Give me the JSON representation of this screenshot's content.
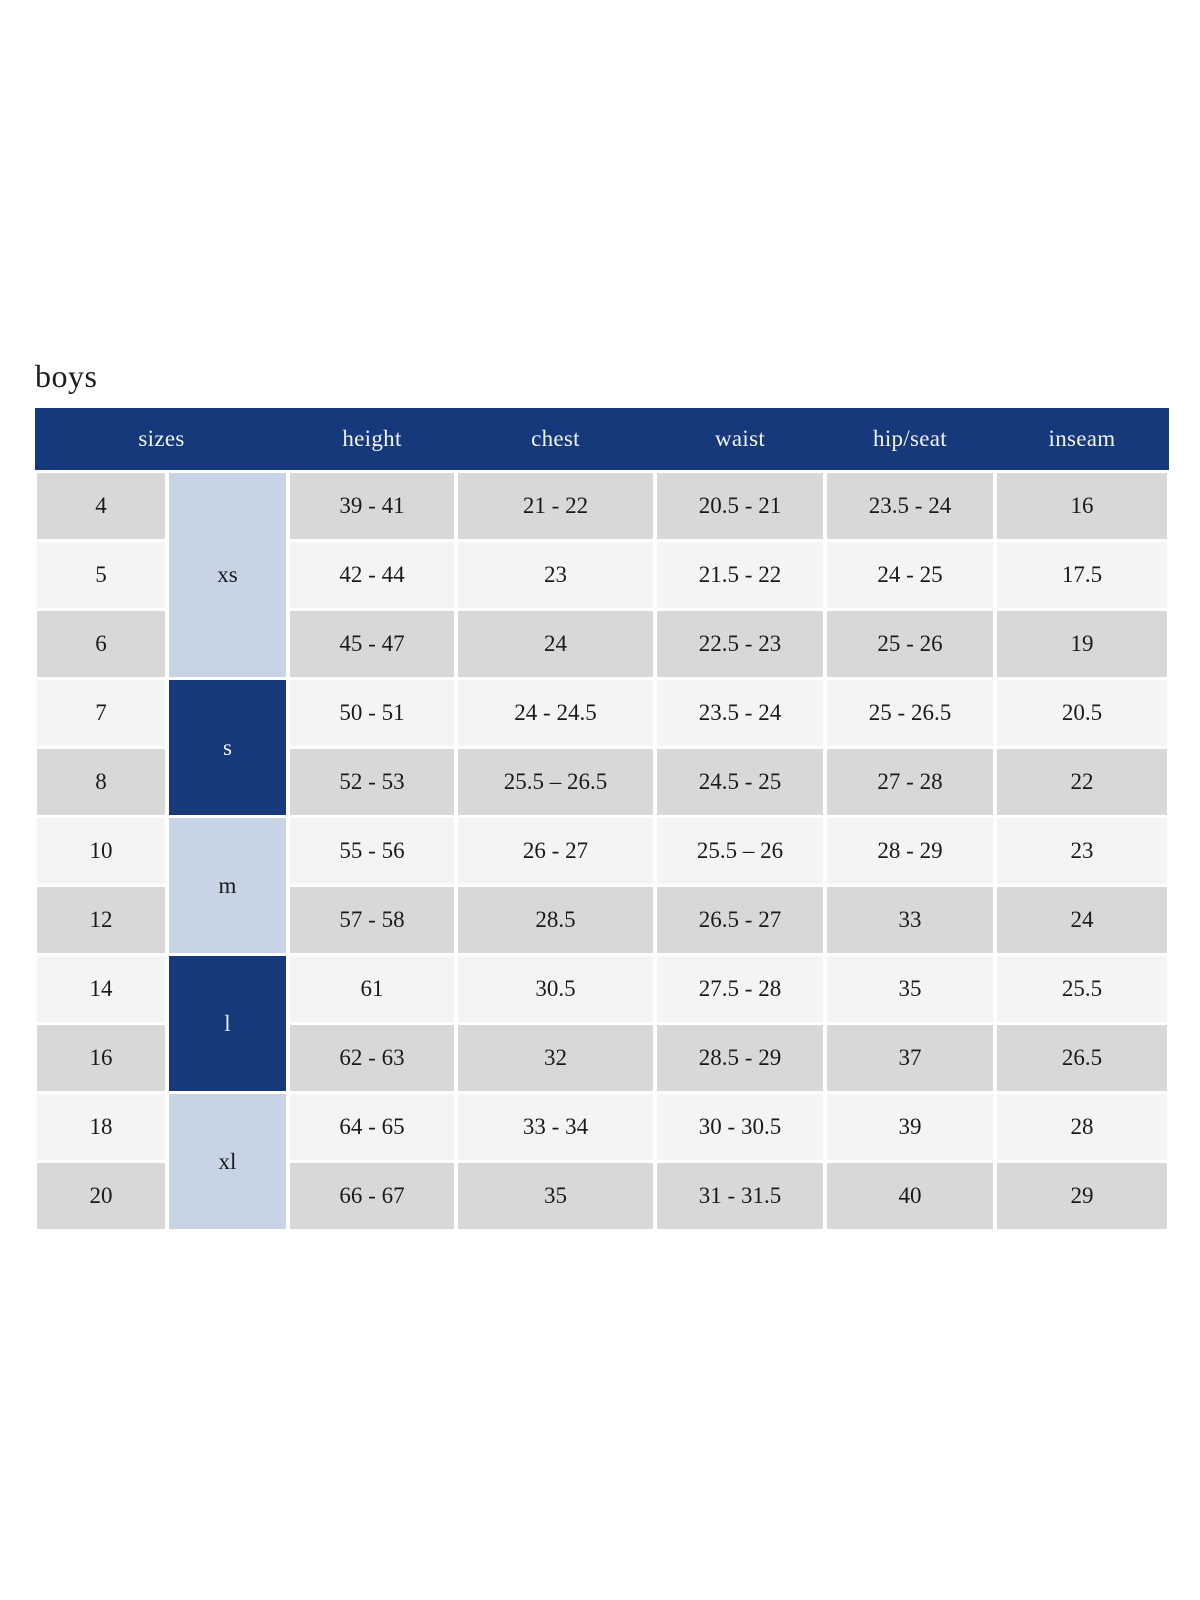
{
  "page": {
    "title": "boys"
  },
  "colors": {
    "header_bg": "#15397b",
    "header_text": "#f2f2f2",
    "group_dark_bg": "#15397b",
    "group_light_bg": "#c6d4e6",
    "row_gray": "#d8d8d8",
    "row_light": "#f4f4f4",
    "body_text": "#1a1a1a",
    "page_bg": "#ffffff"
  },
  "chart_data": {
    "type": "table",
    "title": "boys",
    "columns": [
      "sizes",
      "height",
      "chest",
      "waist",
      "hip/seat",
      "inseam"
    ],
    "size_groups": [
      {
        "label": "xs",
        "tone": "light",
        "row_span": 3
      },
      {
        "label": "s",
        "tone": "dark",
        "row_span": 2
      },
      {
        "label": "m",
        "tone": "light",
        "row_span": 2
      },
      {
        "label": "l",
        "tone": "dark",
        "row_span": 2
      },
      {
        "label": "xl",
        "tone": "light",
        "row_span": 2
      }
    ],
    "rows": [
      {
        "size": "4",
        "group": "xs",
        "height": "39 - 41",
        "chest": "21 - 22",
        "waist": "20.5 - 21",
        "hip_seat": "23.5 - 24",
        "inseam": "16"
      },
      {
        "size": "5",
        "group": "xs",
        "height": "42 - 44",
        "chest": "23",
        "waist": "21.5 - 22",
        "hip_seat": "24 - 25",
        "inseam": "17.5"
      },
      {
        "size": "6",
        "group": "xs",
        "height": "45 - 47",
        "chest": "24",
        "waist": "22.5 - 23",
        "hip_seat": "25 - 26",
        "inseam": "19"
      },
      {
        "size": "7",
        "group": "s",
        "height": "50 - 51",
        "chest": "24 - 24.5",
        "waist": "23.5 - 24",
        "hip_seat": "25 - 26.5",
        "inseam": "20.5"
      },
      {
        "size": "8",
        "group": "s",
        "height": "52 - 53",
        "chest": "25.5 – 26.5",
        "waist": "24.5 - 25",
        "hip_seat": "27 - 28",
        "inseam": "22"
      },
      {
        "size": "10",
        "group": "m",
        "height": "55 - 56",
        "chest": "26 - 27",
        "waist": "25.5 – 26",
        "hip_seat": "28 - 29",
        "inseam": "23"
      },
      {
        "size": "12",
        "group": "m",
        "height": "57 - 58",
        "chest": "28.5",
        "waist": "26.5 - 27",
        "hip_seat": "33",
        "inseam": "24"
      },
      {
        "size": "14",
        "group": "l",
        "height": "61",
        "chest": "30.5",
        "waist": "27.5 - 28",
        "hip_seat": "35",
        "inseam": "25.5"
      },
      {
        "size": "16",
        "group": "l",
        "height": "62 - 63",
        "chest": "32",
        "waist": "28.5 - 29",
        "hip_seat": "37",
        "inseam": "26.5"
      },
      {
        "size": "18",
        "group": "xl",
        "height": "64 - 65",
        "chest": "33 - 34",
        "waist": "30 - 30.5",
        "hip_seat": "39",
        "inseam": "28"
      },
      {
        "size": "20",
        "group": "xl",
        "height": "66 - 67",
        "chest": "35",
        "waist": "31 - 31.5",
        "hip_seat": "40",
        "inseam": "29"
      }
    ]
  }
}
